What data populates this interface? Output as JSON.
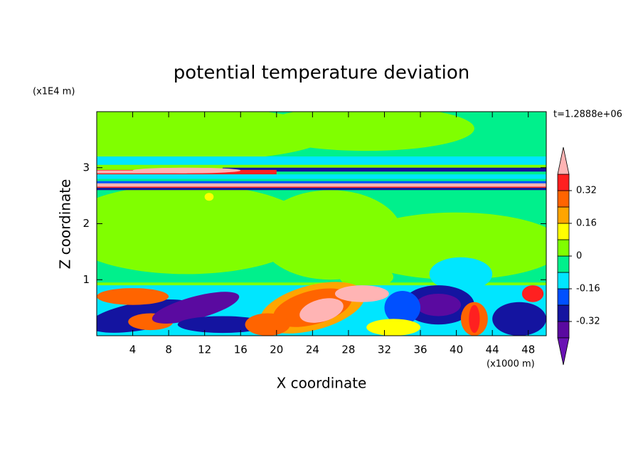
{
  "chart_data": {
    "type": "contour",
    "title": "potential temperature deviation",
    "x_label": "X coordinate",
    "y_label": "Z coordinate",
    "x_unit": "(x1000 m)",
    "y_unit": "(x1E4 m)",
    "annotation": "t=1.2888e+06",
    "xlim": [
      0,
      50
    ],
    "xticks": [
      4,
      8,
      12,
      16,
      20,
      24,
      28,
      32,
      36,
      40,
      44,
      48
    ],
    "ylim": [
      0,
      4
    ],
    "yticks": [
      1,
      2,
      3
    ],
    "clim": [
      -0.4,
      0.4
    ],
    "colorbar_ticks": [
      -0.32,
      -0.16,
      0,
      0.16,
      0.32
    ],
    "colors": [
      "#6a12b4",
      "#5a0aa0",
      "#1414a0",
      "#0050ff",
      "#00e6ff",
      "#00f08c",
      "#80ff00",
      "#ffff00",
      "#ffa500",
      "#ff6400",
      "#ff2020",
      "#ffb4b4"
    ]
  }
}
